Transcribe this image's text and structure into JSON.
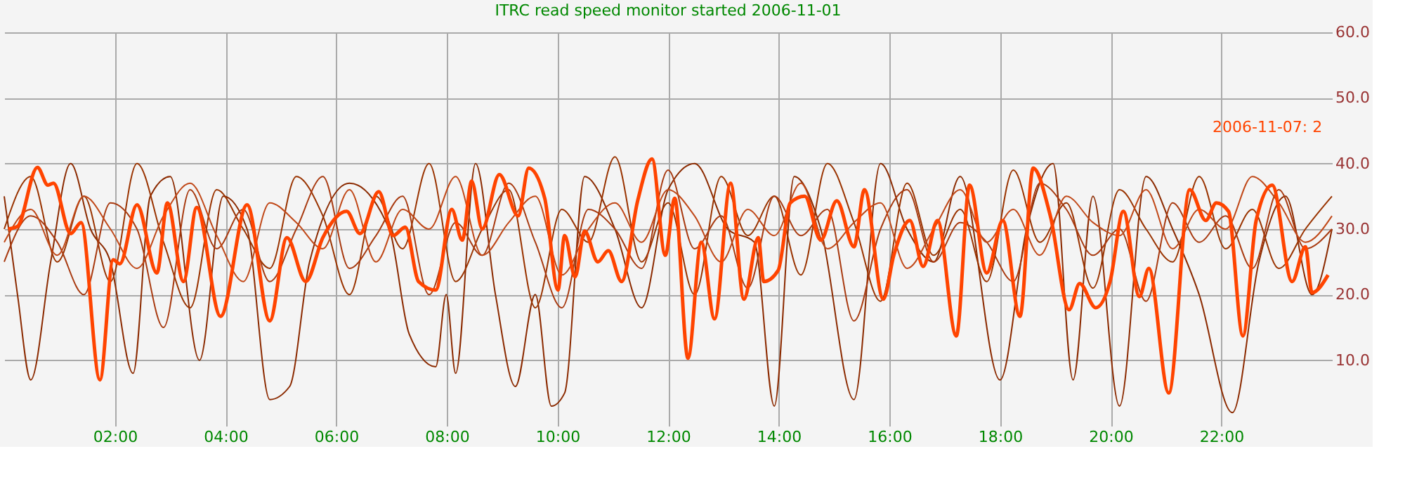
{
  "chart_data": {
    "type": "line",
    "title": "ITRC read speed monitor started 2006-11-01",
    "xlim": [
      0,
      24
    ],
    "xticks": [
      {
        "value": 2,
        "label": "02:00"
      },
      {
        "value": 4,
        "label": "04:00"
      },
      {
        "value": 6,
        "label": "06:00"
      },
      {
        "value": 8,
        "label": "08:00"
      },
      {
        "value": 10,
        "label": "10:00"
      },
      {
        "value": 12,
        "label": "12:00"
      },
      {
        "value": 14,
        "label": "14:00"
      },
      {
        "value": 16,
        "label": "16:00"
      },
      {
        "value": 18,
        "label": "18:00"
      },
      {
        "value": 20,
        "label": "20:00"
      },
      {
        "value": 22,
        "label": "22:00"
      }
    ],
    "ylim": [
      0,
      60
    ],
    "yticks": [
      {
        "value": 10,
        "label": "10.0"
      },
      {
        "value": 20,
        "label": "20.0"
      },
      {
        "value": 30,
        "label": "30.0"
      },
      {
        "value": 40,
        "label": "40.0"
      },
      {
        "value": 50,
        "label": "50.0"
      },
      {
        "value": 60,
        "label": "60.0"
      }
    ],
    "grid": true,
    "marker": "none",
    "line_style": "solid",
    "annotations": [
      "2006-11-07: 2"
    ],
    "series": [
      {
        "color": "#8b2a00",
        "x": [
          0,
          0.24,
          0.48,
          0.84,
          1.2,
          1.56,
          1.92,
          2.33,
          2.64,
          3,
          3.53,
          3.96,
          4.39,
          4.8,
          5.16,
          5.52,
          6.24,
          6.96,
          7.32,
          7.8,
          7.99,
          8.16,
          8.52,
          8.88,
          9.24,
          9.6,
          9.89,
          10.13,
          10.49,
          11.04,
          11.52,
          12,
          12.48,
          13.08,
          13.56,
          13.92,
          14.28,
          14.76,
          15.36,
          15.84,
          16.32,
          16.8,
          17.28,
          18,
          18.48,
          18.96,
          19.32,
          19.68,
          20.16,
          20.64,
          21.12,
          21.6,
          22.2,
          22.68,
          23.16,
          23.64,
          24
        ],
        "values": [
          35,
          20,
          7,
          25,
          40,
          30,
          25,
          8,
          35,
          38,
          10,
          35,
          30,
          4,
          6,
          25,
          37,
          30,
          14,
          9,
          20,
          8,
          40,
          20,
          6,
          20,
          3,
          5,
          38,
          30,
          18,
          36,
          40,
          30,
          28,
          3,
          38,
          30,
          4,
          40,
          30,
          25,
          38,
          7,
          30,
          40,
          7,
          35,
          3,
          38,
          30,
          20,
          2,
          25,
          35,
          20,
          30
        ]
      },
      {
        "color": "#993300",
        "x": [
          0,
          0.48,
          0.96,
          1.44,
          1.92,
          2.4,
          2.88,
          3.36,
          3.84,
          4.32,
          4.8,
          5.28,
          5.76,
          6.24,
          6.72,
          7.2,
          7.68,
          8.16,
          8.64,
          9.12,
          9.6,
          10.08,
          10.56,
          11.04,
          11.52,
          12,
          12.48,
          12.96,
          13.44,
          13.92,
          14.4,
          14.88,
          15.36,
          15.84,
          16.32,
          16.8,
          17.28,
          17.76,
          18.24,
          18.72,
          19.2,
          19.68,
          20.16,
          20.64,
          21.12,
          21.6,
          22.08,
          22.56,
          23.04,
          23.52,
          24
        ],
        "values": [
          30,
          38,
          25,
          35,
          22,
          40,
          28,
          18,
          36,
          30,
          24,
          38,
          32,
          20,
          35,
          27,
          40,
          22,
          30,
          36,
          18,
          33,
          28,
          41,
          25,
          34,
          20,
          38,
          29,
          35,
          23,
          40,
          31,
          19,
          37,
          26,
          33,
          22,
          39,
          28,
          34,
          21,
          36,
          30,
          25,
          38,
          27,
          33,
          24,
          30,
          35
        ]
      },
      {
        "color": "#a83a10",
        "x": [
          0,
          0.48,
          0.96,
          1.44,
          1.92,
          2.4,
          2.88,
          3.36,
          3.84,
          4.32,
          4.8,
          5.28,
          5.76,
          6.24,
          6.72,
          7.2,
          7.68,
          8.16,
          8.64,
          9.12,
          9.6,
          10.08,
          10.56,
          11.04,
          11.52,
          12,
          12.48,
          12.96,
          13.44,
          13.92,
          14.4,
          14.88,
          15.36,
          15.84,
          16.32,
          16.8,
          17.28,
          17.76,
          18.24,
          18.72,
          19.2,
          19.68,
          20.16,
          20.64,
          21.12,
          21.6,
          22.08,
          22.56,
          23.04,
          23.52,
          24
        ],
        "values": [
          25,
          32,
          28,
          20,
          34,
          30,
          15,
          36,
          27,
          33,
          22,
          30,
          38,
          24,
          29,
          35,
          20,
          31,
          26,
          37,
          28,
          18,
          33,
          30,
          24,
          39,
          27,
          32,
          21,
          35,
          29,
          33,
          16,
          30,
          36,
          25,
          31,
          28,
          22,
          37,
          33,
          26,
          30,
          19,
          34,
          28,
          32,
          24,
          36,
          27,
          30
        ]
      },
      {
        "color": "#c04818",
        "x": [
          0,
          0.48,
          0.96,
          1.44,
          1.92,
          2.4,
          2.88,
          3.36,
          3.84,
          4.32,
          4.8,
          5.28,
          5.76,
          6.24,
          6.72,
          7.2,
          7.68,
          8.16,
          8.64,
          9.12,
          9.6,
          10.08,
          10.56,
          11.04,
          11.52,
          12,
          12.48,
          12.96,
          13.44,
          13.92,
          14.4,
          14.88,
          15.36,
          15.84,
          16.32,
          16.8,
          17.28,
          17.76,
          18.24,
          18.72,
          19.2,
          19.68,
          20.16,
          20.64,
          21.12,
          21.6,
          22.08,
          22.56,
          23.04,
          23.52,
          24
        ],
        "values": [
          28,
          33,
          26,
          35,
          30,
          24,
          32,
          37,
          29,
          22,
          34,
          31,
          27,
          36,
          25,
          33,
          30,
          38,
          26,
          31,
          35,
          23,
          30,
          34,
          28,
          36,
          32,
          25,
          33,
          29,
          37,
          27,
          31,
          34,
          24,
          30,
          36,
          28,
          33,
          26,
          35,
          31,
          29,
          36,
          27,
          33,
          30,
          38,
          34,
          28,
          32
        ]
      },
      {
        "color": "#ff4400",
        "x": [
          0.07,
          0.24,
          0.6,
          0.79,
          0.89,
          1.2,
          1.39,
          1.73,
          1.97,
          2.09,
          2.4,
          2.76,
          2.95,
          3.24,
          3.48,
          3.91,
          4.39,
          4.8,
          5.11,
          5.45,
          5.76,
          6.19,
          6.43,
          6.77,
          7.03,
          7.25,
          7.49,
          7.8,
          8.09,
          8.28,
          8.45,
          8.64,
          8.95,
          9.29,
          9.48,
          9.77,
          10.01,
          10.13,
          10.32,
          10.49,
          10.73,
          10.92,
          11.16,
          11.45,
          11.71,
          11.95,
          12.12,
          12.36,
          12.6,
          12.84,
          13.13,
          13.37,
          13.63,
          13.73,
          13.99,
          14.21,
          14.47,
          14.76,
          15.05,
          15.36,
          15.55,
          15.89,
          16.08,
          16.37,
          16.61,
          16.87,
          17.21,
          17.45,
          17.76,
          18.05,
          18.36,
          18.6,
          18.91,
          19.25,
          19.44,
          19.73,
          19.99,
          20.23,
          20.52,
          20.69,
          21.05,
          21.43,
          21.72,
          21.91,
          22.13,
          22.39,
          22.63,
          22.92,
          23.28,
          23.52,
          23.64,
          23.93
        ],
        "values": [
          30,
          30.4,
          39.4,
          36.7,
          37,
          29.3,
          31,
          7,
          25.3,
          24.7,
          33.7,
          23.3,
          34,
          22,
          33.3,
          16.7,
          33.7,
          16,
          28.7,
          22,
          28.7,
          32.7,
          29.3,
          35.7,
          29,
          30.3,
          22,
          20.7,
          33,
          28.3,
          37.3,
          30,
          38.3,
          32,
          39.3,
          34.7,
          20.7,
          29,
          22.7,
          29.7,
          25,
          26.7,
          22,
          34.3,
          40.7,
          26,
          34.7,
          10.3,
          28,
          16.3,
          37,
          19.3,
          28.7,
          22,
          23.7,
          34,
          35,
          28.3,
          34.3,
          27.3,
          36,
          19.3,
          26,
          31.3,
          24.3,
          31.3,
          13.7,
          36.7,
          23.3,
          31.3,
          16.7,
          39.3,
          32,
          17.7,
          21.7,
          18,
          22,
          32.7,
          19.7,
          24,
          5,
          36,
          31.3,
          34,
          32.7,
          13.7,
          31.3,
          36.7,
          22,
          27.3,
          20.3,
          23
        ]
      }
    ]
  }
}
